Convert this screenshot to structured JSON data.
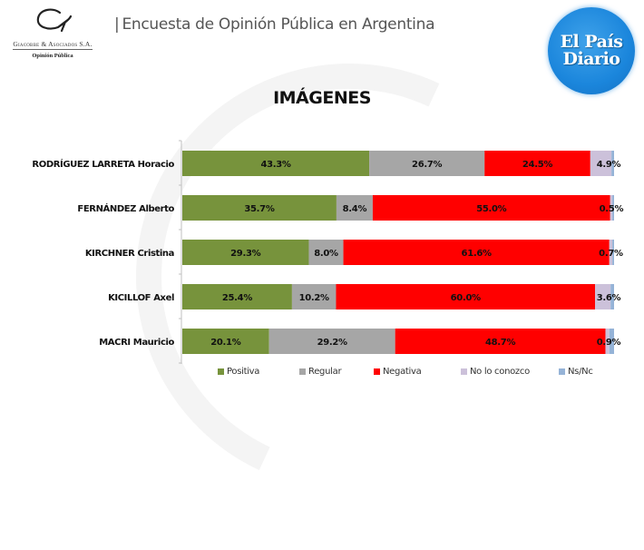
{
  "header": {
    "logo": {
      "firm_name": "Giacobbe & Asociados S.A.",
      "subtitle": "Opinión Pública"
    },
    "separator": "|",
    "title": "Encuesta de Opinión Pública en Argentina",
    "badge": {
      "line1": "El País",
      "line2": "Diario",
      "color": "#1b86dc"
    }
  },
  "chart_data": {
    "type": "bar",
    "orientation": "horizontal",
    "stacked": true,
    "title": "IMÁGENES",
    "xlabel": "",
    "ylabel": "",
    "xlim": [
      0,
      100
    ],
    "grid": false,
    "legend_position": "bottom",
    "categories": [
      "RODRÍGUEZ LARRETA Horacio",
      "FERNÁNDEZ Alberto",
      "KIRCHNER Cristina",
      "KICILLOF Axel",
      "MACRI Mauricio"
    ],
    "series": [
      {
        "name": "Positiva",
        "color": "#77933c",
        "values": [
          43.3,
          35.7,
          29.3,
          25.4,
          20.1
        ],
        "labels": [
          "43.3%",
          "35.7%",
          "29.3%",
          "25.4%",
          "20.1%"
        ]
      },
      {
        "name": "Regular",
        "color": "#a6a6a6",
        "values": [
          26.7,
          8.4,
          8.0,
          10.2,
          29.2
        ],
        "labels": [
          "26.7%",
          "8.4%",
          "8.0%",
          "10.2%",
          "29.2%"
        ]
      },
      {
        "name": "Negativa",
        "color": "#ff0000",
        "values": [
          24.5,
          55.0,
          61.6,
          60.0,
          48.7
        ],
        "labels": [
          "24.5%",
          "55.0%",
          "61.6%",
          "60.0%",
          "48.7%"
        ]
      },
      {
        "name": "No lo conozco",
        "color": "#ccc1da",
        "values": [
          4.9,
          0.5,
          0.7,
          3.6,
          0.9
        ],
        "labels": [
          "4.9%",
          "0.5%",
          "0.7%",
          "3.6%",
          "0.9%"
        ]
      },
      {
        "name": "Ns/Nc",
        "color": "#95b3d7",
        "values": [
          0.6,
          0.4,
          0.4,
          0.8,
          1.1
        ],
        "labels": [
          "",
          "",
          "",
          "",
          ""
        ]
      }
    ]
  }
}
